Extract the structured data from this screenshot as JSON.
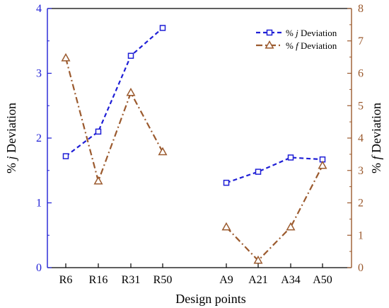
{
  "chart_data": {
    "type": "line",
    "categories": [
      "R6",
      "R16",
      "R31",
      "R50",
      "A9",
      "A21",
      "A34",
      "A50"
    ],
    "xlabel": "Design points",
    "ylabel_left": "% j Deviation",
    "ylabel_right": "% f Deviation",
    "ylim_left": [
      0,
      4
    ],
    "ylim_right": [
      0,
      8
    ],
    "yticks_left": [
      "0",
      "1",
      "2",
      "3",
      "4"
    ],
    "yticks_right": [
      "0",
      "1",
      "2",
      "3",
      "4",
      "5",
      "6",
      "7",
      "8"
    ],
    "legend_position": "top-right",
    "grid": false,
    "series": [
      {
        "name": "% j Deviation",
        "legend_prefix": "% ",
        "legend_var": "j",
        "legend_suffix": " Deviation",
        "axis": "left",
        "color": "#1f1fd6",
        "marker": "square",
        "line_style": "dashed",
        "groups": [
          {
            "categories": [
              "R6",
              "R16",
              "R31",
              "R50"
            ],
            "values": [
              1.72,
              2.1,
              3.27,
              3.7
            ]
          },
          {
            "categories": [
              "A9",
              "A21",
              "A34",
              "A50"
            ],
            "values": [
              1.31,
              1.48,
              1.7,
              1.67
            ]
          }
        ]
      },
      {
        "name": "% f Deviation",
        "legend_prefix": "% ",
        "legend_var": "f",
        "legend_suffix": " Deviation",
        "axis": "right",
        "color": "#9b5a2e",
        "marker": "triangle",
        "line_style": "dash-dot",
        "groups": [
          {
            "categories": [
              "R6",
              "R16",
              "R31",
              "R50"
            ],
            "values": [
              6.47,
              2.67,
              5.4,
              3.57
            ]
          },
          {
            "categories": [
              "A9",
              "A21",
              "A34",
              "A50"
            ],
            "values": [
              1.25,
              0.22,
              1.25,
              3.15
            ]
          }
        ]
      }
    ]
  }
}
